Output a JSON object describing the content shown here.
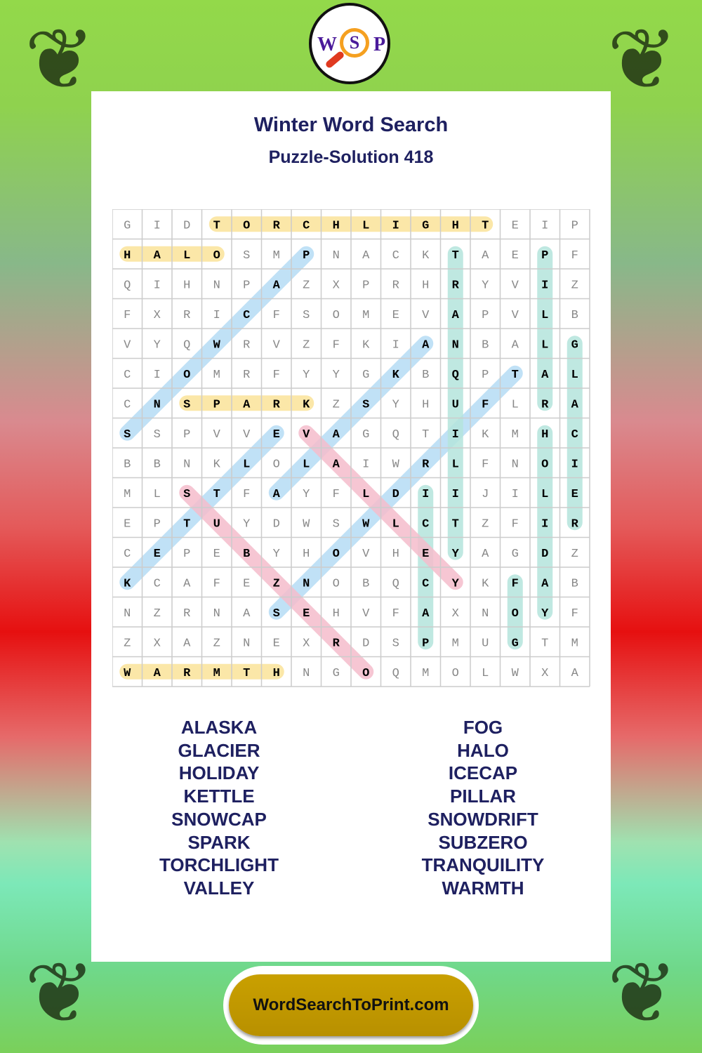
{
  "logo": {
    "left": "W",
    "center": "S",
    "right": "P"
  },
  "title": "Winter Word Search",
  "subtitle": "Puzzle-Solution 418",
  "grid": [
    "GIDTORCHLIGHTEIP",
    "HALOSMPNACKTAEPF",
    "QIHNPAZXPRHRYVIZ",
    "FXRICFSOMEVAPVLB",
    "VYQWRVZFKIANBALG",
    "CIOMRFYYGKBQPTAL",
    "CNSPARKZSYHUFLRA",
    "SSPVVEVAGQTIKMHC",
    "BBNKLOLAIWRLFNOI",
    "MLSTFAYFLDIIJILE",
    "EPTUYDWSWLCTZFIR",
    "CEPEBYHOVHEYAGDZ",
    "KCAFEZNOBQCYKFAB",
    "NZRNASEHVFAXNOYF",
    "ZXAZNEXRDSPMUGTM",
    "WARMTHNGOQMOLWXA"
  ],
  "highlight_colors": {
    "yellow": "#fbe7a8",
    "blue": "#b5dcf5",
    "teal": "#b4e4dc",
    "pink": "#f5bccb"
  },
  "solutions": [
    {
      "word": "TORCHLIGHT",
      "from": [
        0,
        3
      ],
      "to": [
        0,
        12
      ],
      "color": "yellow"
    },
    {
      "word": "HALO",
      "from": [
        1,
        0
      ],
      "to": [
        1,
        3
      ],
      "color": "yellow"
    },
    {
      "word": "SPARK",
      "from": [
        6,
        2
      ],
      "to": [
        6,
        6
      ],
      "color": "yellow"
    },
    {
      "word": "WARMTH",
      "from": [
        15,
        0
      ],
      "to": [
        15,
        5
      ],
      "color": "yellow"
    },
    {
      "word": "SNOWCAP",
      "from": [
        7,
        0
      ],
      "to": [
        1,
        6
      ],
      "color": "blue"
    },
    {
      "word": "KETTLE",
      "from": [
        12,
        0
      ],
      "to": [
        7,
        5
      ],
      "color": "blue"
    },
    {
      "word": "SNOWDRIFT",
      "from": [
        13,
        5
      ],
      "to": [
        5,
        13
      ],
      "color": "blue"
    },
    {
      "word": "ALASKA",
      "from": [
        9,
        5
      ],
      "to": [
        4,
        10
      ],
      "color": "blue"
    },
    {
      "word": "TRANQUILITY",
      "from": [
        1,
        11
      ],
      "to": [
        11,
        11
      ],
      "color": "teal"
    },
    {
      "word": "PILLAR",
      "from": [
        1,
        14
      ],
      "to": [
        6,
        14
      ],
      "color": "teal"
    },
    {
      "word": "HOLIDAY",
      "from": [
        7,
        14
      ],
      "to": [
        13,
        14
      ],
      "color": "teal"
    },
    {
      "word": "GLACIER",
      "from": [
        4,
        15
      ],
      "to": [
        10,
        15
      ],
      "color": "teal"
    },
    {
      "word": "ICECAP",
      "from": [
        9,
        10
      ],
      "to": [
        14,
        10
      ],
      "color": "teal"
    },
    {
      "word": "FOG",
      "from": [
        12,
        13
      ],
      "to": [
        14,
        13
      ],
      "color": "teal"
    },
    {
      "word": "SUBZERO",
      "from": [
        9,
        2
      ],
      "to": [
        15,
        8
      ],
      "color": "pink"
    },
    {
      "word": "VALLEY",
      "from": [
        7,
        6
      ],
      "to": [
        12,
        11
      ],
      "color": "pink"
    }
  ],
  "word_list_left": [
    "ALASKA",
    "GLACIER",
    "HOLIDAY",
    "KETTLE",
    "SNOWCAP",
    "SPARK",
    "TORCHLIGHT",
    "VALLEY"
  ],
  "word_list_right": [
    "FOG",
    "HALO",
    "ICECAP",
    "PILLAR",
    "SNOWDRIFT",
    "SUBZERO",
    "TRANQUILITY",
    "WARMTH"
  ],
  "footer": "WordSearchToPrint.com"
}
